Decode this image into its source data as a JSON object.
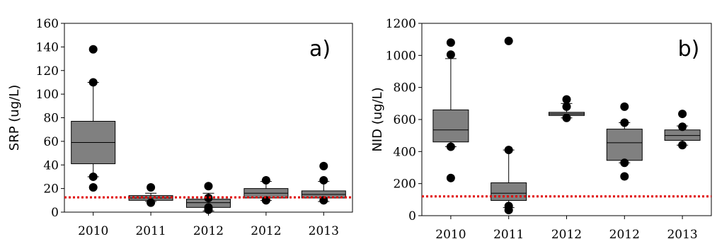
{
  "colors": {
    "box_fill": "#808080",
    "threshold_line": "#e00000",
    "outlier": "#000000",
    "axes": "#000000"
  },
  "chart_data": [
    {
      "type": "box",
      "panel_label": "a)",
      "ylabel": "SRP (ug/L)",
      "ylim": [
        0,
        160
      ],
      "yticks": [
        0,
        20,
        40,
        60,
        80,
        100,
        120,
        140,
        160
      ],
      "categories": [
        "2010",
        "2011",
        "2012",
        "2012",
        "2013"
      ],
      "threshold": 12.5,
      "boxes": [
        {
          "q1": 41,
          "median": 59,
          "q3": 77,
          "whisker_low": 30,
          "whisker_high": 110,
          "outliers": [
            138,
            110,
            30,
            21
          ]
        },
        {
          "q1": 10,
          "median": 12,
          "q3": 14,
          "whisker_low": 9,
          "whisker_high": 16,
          "outliers": [
            21,
            8
          ]
        },
        {
          "q1": 4,
          "median": 8,
          "q3": 11,
          "whisker_low": 1,
          "whisker_high": 16,
          "outliers": [
            22,
            12,
            4,
            2
          ]
        },
        {
          "q1": 12,
          "median": 16,
          "q3": 20,
          "whisker_low": 10,
          "whisker_high": 26,
          "outliers": [
            27,
            10
          ]
        },
        {
          "q1": 12,
          "median": 15,
          "q3": 18,
          "whisker_low": 9,
          "whisker_high": 26,
          "outliers": [
            39,
            27,
            10
          ]
        }
      ]
    },
    {
      "type": "box",
      "panel_label": "b)",
      "ylabel": "NID (ug/L)",
      "ylim": [
        0,
        1200
      ],
      "yticks": [
        0,
        200,
        400,
        600,
        800,
        1000,
        1200
      ],
      "categories": [
        "2010",
        "2011",
        "2012",
        "2012",
        "2013"
      ],
      "threshold": 120,
      "boxes": [
        {
          "q1": 460,
          "median": 535,
          "q3": 660,
          "whisker_low": 430,
          "whisker_high": 980,
          "outliers": [
            1080,
            1005,
            430,
            235
          ]
        },
        {
          "q1": 95,
          "median": 140,
          "q3": 205,
          "whisker_low": 50,
          "whisker_high": 410,
          "outliers": [
            1090,
            410,
            60,
            35
          ]
        },
        {
          "q1": 625,
          "median": 635,
          "q3": 645,
          "whisker_low": 610,
          "whisker_high": 700,
          "outliers": [
            725,
            680,
            610
          ]
        },
        {
          "q1": 345,
          "median": 455,
          "q3": 540,
          "whisker_low": 330,
          "whisker_high": 580,
          "outliers": [
            680,
            580,
            330,
            245
          ]
        },
        {
          "q1": 470,
          "median": 500,
          "q3": 535,
          "whisker_low": 440,
          "whisker_high": 560,
          "outliers": [
            635,
            555,
            440
          ]
        }
      ]
    }
  ]
}
